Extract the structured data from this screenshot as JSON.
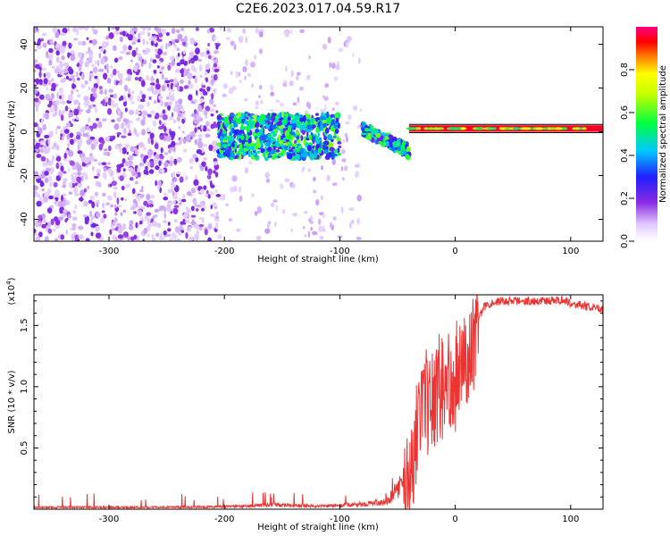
{
  "title": "C2E6.2023.017.04.59.R17",
  "chart_data": [
    {
      "type": "heatmap",
      "xlabel": "Height of straight line (km)",
      "ylabel": "Frequency (Hz)",
      "xlim": [
        -365,
        128
      ],
      "ylim": [
        -50,
        48
      ],
      "x_ticks": [
        -300,
        -200,
        -100,
        0,
        100
      ],
      "y_ticks": [
        -40,
        -20,
        0,
        20,
        40
      ],
      "colorbar": {
        "label": "Normalized spectral amplitude",
        "range": [
          0,
          1
        ],
        "ticks": [
          0.0,
          0.2,
          0.4,
          0.6,
          0.8
        ],
        "tick_labels": [
          "0.0",
          "0.2",
          "0.4",
          "0.6",
          "0.8"
        ]
      },
      "regions": [
        {
          "x_range": [
            -365,
            -205
          ],
          "freq_range": [
            -50,
            48
          ],
          "amplitude": 0.15,
          "pattern": "dense noise"
        },
        {
          "x_range": [
            -205,
            -80
          ],
          "freq_range": [
            -50,
            48
          ],
          "amplitude": 0.08,
          "pattern": "sparse striped noise"
        },
        {
          "x_range": [
            -205,
            -100
          ],
          "freq_range": [
            -12,
            8
          ],
          "amplitude": 0.4,
          "pattern": "signal band"
        },
        {
          "x_range": [
            -80,
            -40
          ],
          "freq_range": [
            -15,
            3
          ],
          "amplitude": 0.35,
          "pattern": "dipping signal band"
        },
        {
          "x_range": [
            -40,
            128
          ],
          "freq_range": [
            0,
            3
          ],
          "amplitude": 0.95,
          "pattern": "narrow line"
        }
      ]
    },
    {
      "type": "line",
      "xlabel": "Height of straight line (km)",
      "ylabel": "SNR (10 * v/v)",
      "y_multiplier_label": "(x10",
      "y_multiplier_exp": "4",
      "xlim": [
        -365,
        128
      ],
      "ylim": [
        0,
        17500
      ],
      "x_ticks": [
        -300,
        -200,
        -100,
        0,
        100
      ],
      "y_ticks": [
        5000,
        10000,
        15000
      ],
      "y_tick_labels": [
        "0.5",
        "1.0",
        "1.5"
      ],
      "color": "#ee3333",
      "series": [
        {
          "x": [
            -365,
            -250,
            -200,
            -170,
            -160,
            -120,
            -80,
            -60,
            -50,
            -45,
            -40,
            -35,
            -30,
            -25,
            -20,
            -15,
            -10,
            -5,
            0,
            5,
            10,
            15,
            20,
            25,
            30,
            40,
            60,
            80,
            95,
            100,
            110,
            128
          ],
          "y": [
            150,
            160,
            200,
            300,
            350,
            250,
            400,
            600,
            1500,
            2500,
            3500,
            5000,
            7500,
            8500,
            9000,
            9500,
            10000,
            10500,
            11000,
            11500,
            12500,
            14000,
            15500,
            16500,
            16800,
            17000,
            17000,
            17000,
            17100,
            16800,
            16600,
            16300
          ]
        }
      ]
    }
  ]
}
